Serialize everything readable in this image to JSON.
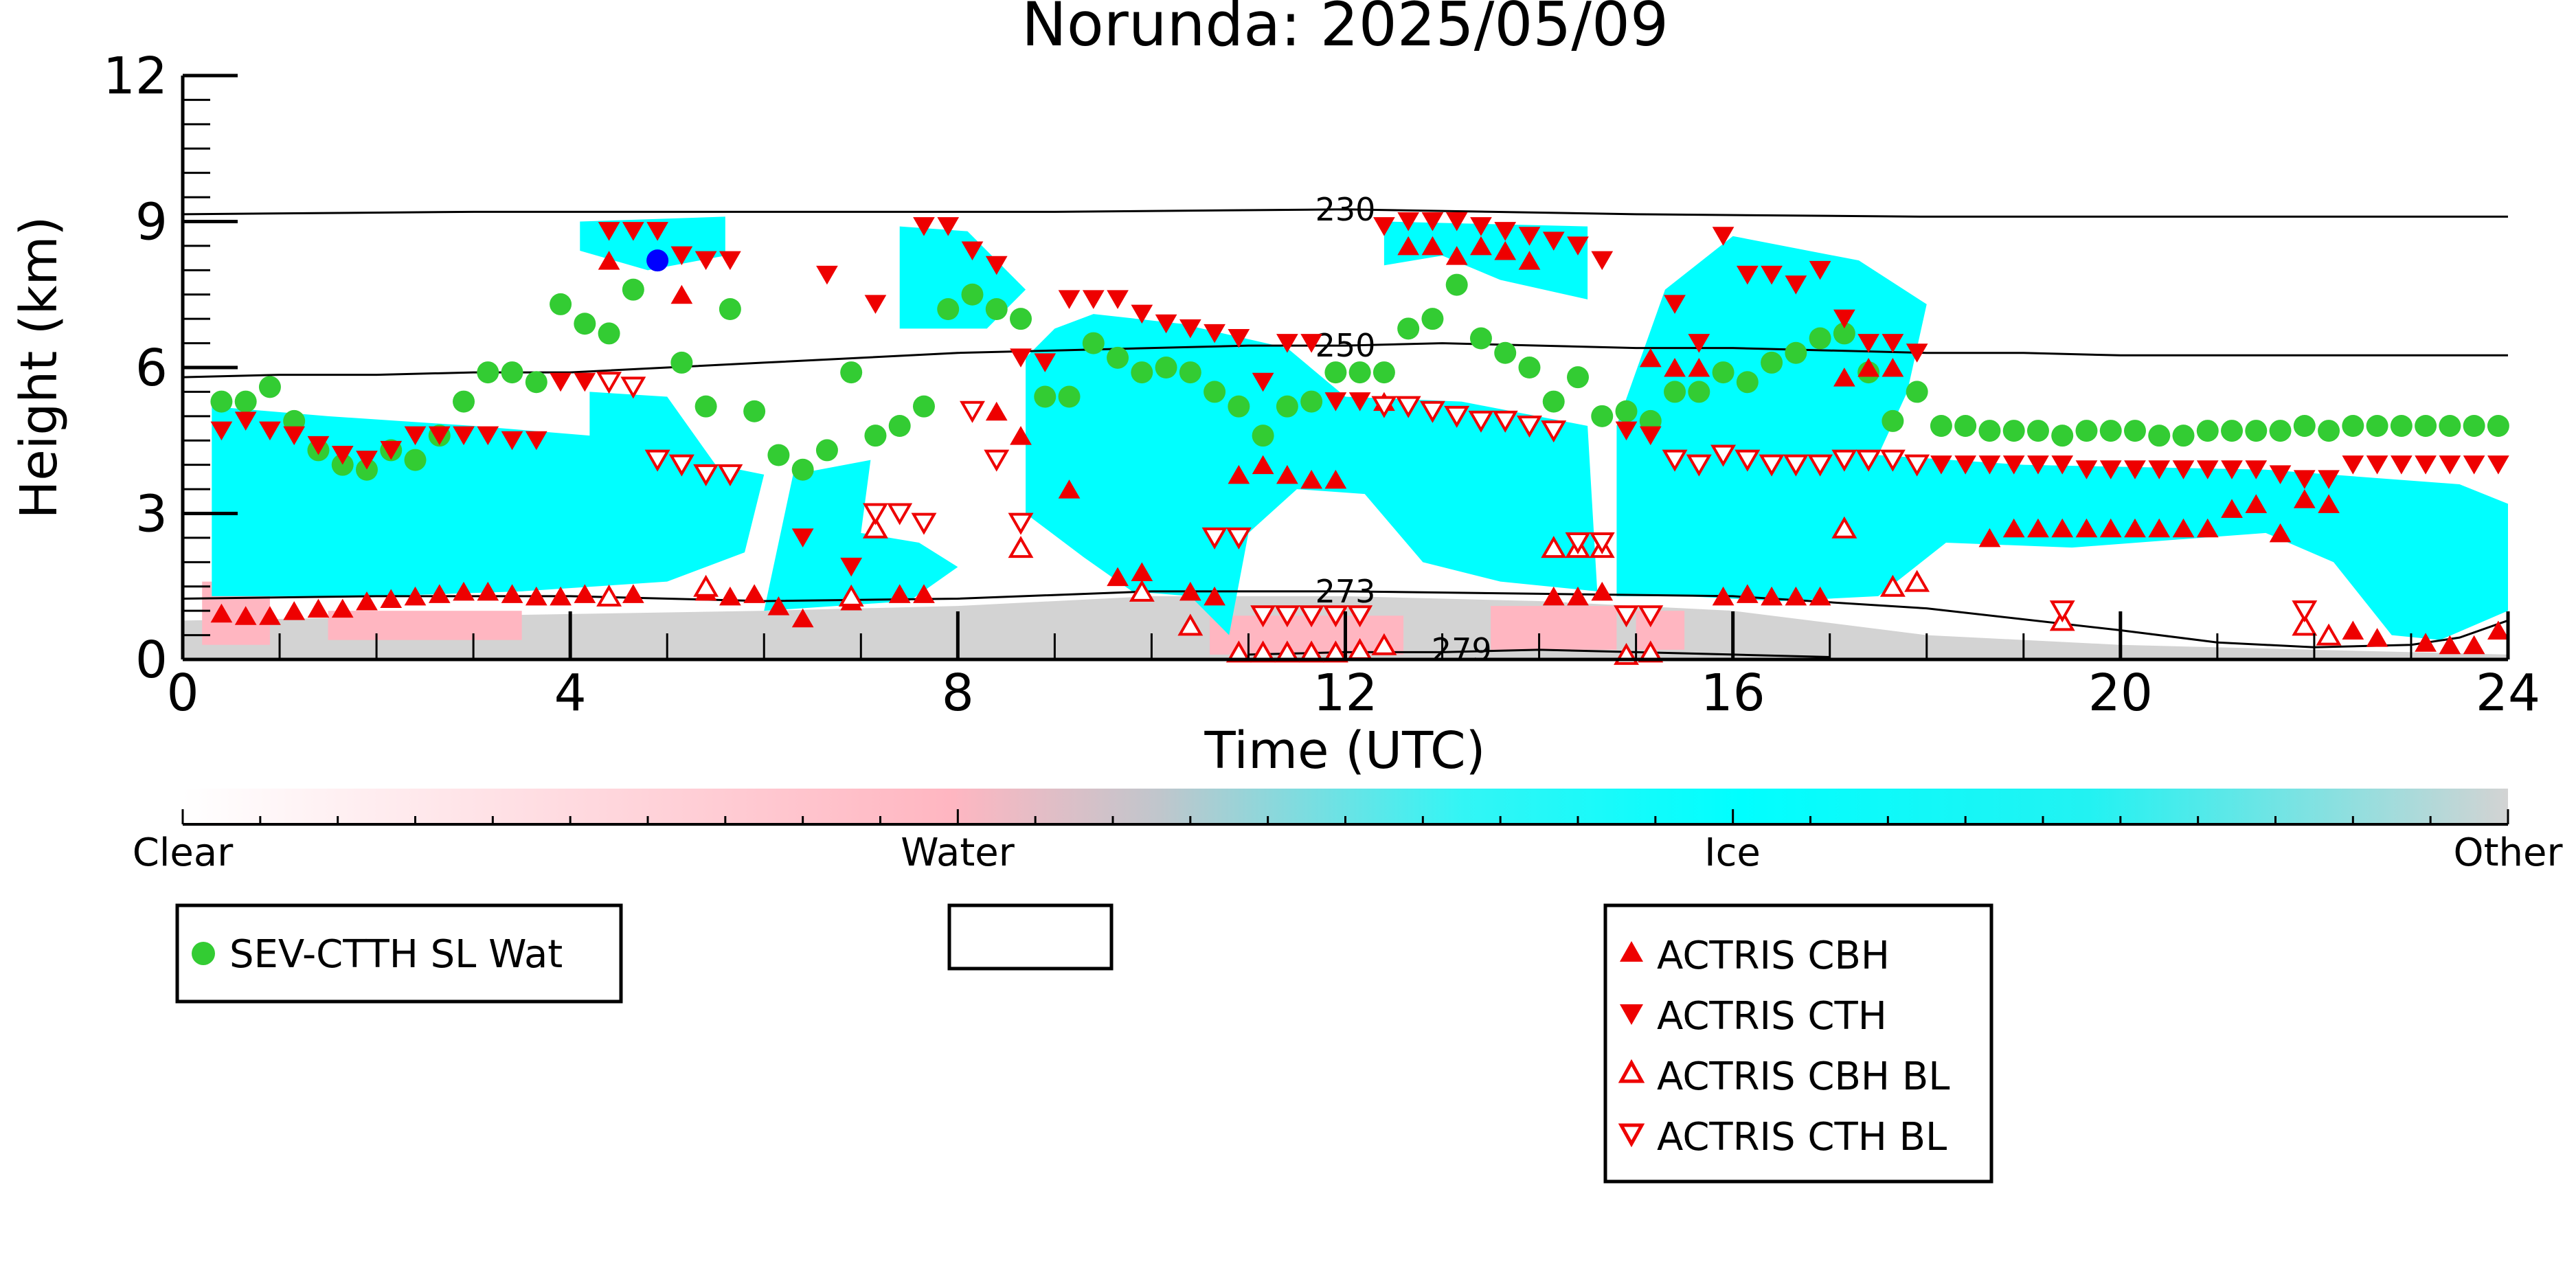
{
  "chart_data": {
    "type": "scatter",
    "title": "Norunda: 2025/05/09",
    "xlabel": "Time (UTC)",
    "ylabel": "Height (km)",
    "xlim": [
      0,
      24
    ],
    "ylim": [
      0,
      12
    ],
    "xticks": [
      0,
      4,
      8,
      12,
      16,
      20,
      24
    ],
    "yticks": [
      0,
      3,
      6,
      9,
      12
    ],
    "grid": false,
    "background": "cloud phase curtain (Clear / Water / Ice / Other) with temperature contours",
    "colorbar": {
      "labels": [
        "Clear",
        "Water",
        "Ice",
        "Other"
      ],
      "colors": [
        "#ffffff",
        "#ffb6c1",
        "#00ffff",
        "#d3d3d3"
      ]
    },
    "contours": [
      {
        "label": "230",
        "x": [
          0,
          3,
          6,
          9,
          12,
          15,
          18,
          21,
          24
        ],
        "y": [
          9.15,
          9.2,
          9.2,
          9.2,
          9.25,
          9.15,
          9.1,
          9.1,
          9.1
        ]
      },
      {
        "label": "250",
        "x": [
          0,
          1,
          2,
          3,
          4,
          5,
          6,
          7,
          8,
          9,
          10,
          11,
          12,
          13,
          14,
          15,
          16,
          17,
          18,
          19,
          20,
          22,
          24
        ],
        "y": [
          5.8,
          5.85,
          5.85,
          5.9,
          5.9,
          6.0,
          6.1,
          6.2,
          6.3,
          6.35,
          6.4,
          6.45,
          6.45,
          6.5,
          6.45,
          6.4,
          6.4,
          6.35,
          6.3,
          6.3,
          6.25,
          6.25,
          6.25
        ]
      },
      {
        "label": "273",
        "x": [
          0,
          2,
          4,
          6,
          8,
          10,
          12,
          14,
          16,
          18,
          20,
          21,
          22,
          23,
          23.5,
          24
        ],
        "y": [
          1.25,
          1.3,
          1.3,
          1.2,
          1.25,
          1.4,
          1.4,
          1.35,
          1.3,
          1.05,
          0.6,
          0.35,
          0.25,
          0.3,
          0.45,
          0.8
        ]
      },
      {
        "label": "279",
        "x": [
          11,
          12,
          13,
          14,
          15,
          16,
          17
        ],
        "y": [
          0.1,
          0.15,
          0.15,
          0.2,
          0.15,
          0.1,
          0.05
        ]
      }
    ],
    "series": [
      {
        "name": "SEV-CTTH SL Wat",
        "marker": "circle",
        "color": "#33cc33",
        "x": [
          0.4,
          0.65,
          0.9,
          1.15,
          1.4,
          1.65,
          1.9,
          2.15,
          2.4,
          2.65,
          2.9,
          3.15,
          3.4,
          3.65,
          3.9,
          4.15,
          4.4,
          4.65,
          5.15,
          5.4,
          5.65,
          5.9,
          6.15,
          6.4,
          6.65,
          6.9,
          7.15,
          7.4,
          7.65,
          7.9,
          8.15,
          8.4,
          8.65,
          8.9,
          9.15,
          9.4,
          9.65,
          9.9,
          10.15,
          10.4,
          10.65,
          10.9,
          11.15,
          11.4,
          11.65,
          11.9,
          12.15,
          12.4,
          12.65,
          12.9,
          13.15,
          13.4,
          13.65,
          13.9,
          14.15,
          14.4,
          14.65,
          14.9,
          15.15,
          15.4,
          15.65,
          15.9,
          16.15,
          16.4,
          16.65,
          16.9,
          17.15,
          17.4,
          17.65,
          17.9,
          18.15,
          18.4,
          18.65,
          18.9,
          19.15,
          19.4,
          19.65,
          19.9,
          20.15,
          20.4,
          20.65,
          20.9,
          21.15,
          21.4,
          21.65,
          21.9,
          22.15,
          22.4,
          22.65,
          22.9,
          23.15,
          23.4,
          23.65,
          23.9
        ],
        "y": [
          5.3,
          5.3,
          5.6,
          4.9,
          4.3,
          4.0,
          3.9,
          4.3,
          4.1,
          4.6,
          5.3,
          5.9,
          5.9,
          5.7,
          7.3,
          6.9,
          6.7,
          7.6,
          6.1,
          5.2,
          7.2,
          5.1,
          4.2,
          3.9,
          4.3,
          5.9,
          4.6,
          4.8,
          5.2,
          7.2,
          7.5,
          7.2,
          7.0,
          5.4,
          5.4,
          6.5,
          6.2,
          5.9,
          6.0,
          5.9,
          5.5,
          5.2,
          4.6,
          5.2,
          5.3,
          5.9,
          5.9,
          5.9,
          6.8,
          7.0,
          7.7,
          6.6,
          6.3,
          6.0,
          5.3,
          5.8,
          5.0,
          5.1,
          4.9,
          5.5,
          5.5,
          5.9,
          5.7,
          6.1,
          6.3,
          6.6,
          6.7,
          5.9,
          4.9,
          5.5,
          4.8,
          4.8,
          4.7,
          4.7,
          4.7,
          4.6,
          4.7,
          4.7,
          4.7,
          4.6,
          4.6,
          4.7,
          4.7,
          4.7,
          4.7,
          4.8,
          4.7,
          4.8,
          4.8,
          4.8,
          4.8,
          4.8,
          4.8,
          4.8
        ]
      },
      {
        "name": "",
        "marker": "circle",
        "color": "#0000ff",
        "x": [
          4.9
        ],
        "y": [
          8.2
        ]
      },
      {
        "name": "ACTRIS CBH",
        "marker": "triangle-up",
        "color": "#ee0000",
        "filled": true,
        "x": [
          0.4,
          0.65,
          0.9,
          1.15,
          1.4,
          1.65,
          1.9,
          2.15,
          2.4,
          2.65,
          2.9,
          3.15,
          3.4,
          3.65,
          3.9,
          4.15,
          4.4,
          4.65,
          5.15,
          5.4,
          5.65,
          5.9,
          6.15,
          6.4,
          6.9,
          7.4,
          7.65,
          8.4,
          8.65,
          9.15,
          9.65,
          9.9,
          10.4,
          10.65,
          10.9,
          11.15,
          11.4,
          11.65,
          11.9,
          12.4,
          12.65,
          12.9,
          13.15,
          13.4,
          13.65,
          13.9,
          14.15,
          14.4,
          14.65,
          15.15,
          15.4,
          15.65,
          15.9,
          16.15,
          16.4,
          16.65,
          16.9,
          17.15,
          17.4,
          17.65,
          18.65,
          18.9,
          19.15,
          19.4,
          19.65,
          19.9,
          20.15,
          20.4,
          20.65,
          20.9,
          21.15,
          21.4,
          21.65,
          21.9,
          22.15,
          22.4,
          22.65,
          23.15,
          23.4,
          23.65,
          23.9
        ],
        "y": [
          0.95,
          0.9,
          0.9,
          1.0,
          1.05,
          1.05,
          1.2,
          1.25,
          1.3,
          1.35,
          1.4,
          1.4,
          1.35,
          1.3,
          1.3,
          1.35,
          8.2,
          1.35,
          7.5,
          1.4,
          1.3,
          1.35,
          1.1,
          0.85,
          1.2,
          1.35,
          1.35,
          5.1,
          4.6,
          3.5,
          1.7,
          1.8,
          1.4,
          1.3,
          3.8,
          4.0,
          3.8,
          3.7,
          3.7,
          5.3,
          8.5,
          8.5,
          8.3,
          8.5,
          8.4,
          8.2,
          1.3,
          1.3,
          1.4,
          6.2,
          6.0,
          6.0,
          1.3,
          1.35,
          1.3,
          1.3,
          1.3,
          5.8,
          6.0,
          6.0,
          2.5,
          2.7,
          2.7,
          2.7,
          2.7,
          2.7,
          2.7,
          2.7,
          2.7,
          2.7,
          3.1,
          3.2,
          2.6,
          3.3,
          3.2,
          0.6,
          0.45,
          0.35,
          0.3,
          0.3,
          0.6
        ]
      },
      {
        "name": "ACTRIS CTH",
        "marker": "triangle-down",
        "color": "#ee0000",
        "filled": true,
        "x": [
          0.4,
          0.65,
          0.9,
          1.15,
          1.4,
          1.65,
          1.9,
          2.15,
          2.4,
          2.65,
          2.9,
          3.15,
          3.4,
          3.65,
          3.9,
          4.15,
          4.4,
          4.65,
          4.9,
          5.15,
          5.4,
          5.65,
          6.4,
          6.65,
          6.9,
          7.15,
          7.65,
          7.9,
          8.15,
          8.4,
          8.65,
          8.9,
          9.15,
          9.4,
          9.65,
          9.9,
          10.15,
          10.4,
          10.65,
          10.9,
          11.15,
          11.4,
          11.65,
          11.9,
          12.15,
          12.4,
          12.65,
          12.9,
          13.15,
          13.4,
          13.65,
          13.9,
          14.15,
          14.4,
          14.65,
          14.9,
          15.15,
          15.4,
          15.65,
          15.9,
          16.15,
          16.4,
          16.65,
          16.9,
          17.15,
          17.4,
          17.65,
          17.9,
          18.15,
          18.4,
          18.65,
          18.9,
          19.15,
          19.4,
          19.65,
          19.9,
          20.15,
          20.4,
          20.65,
          20.9,
          21.15,
          21.4,
          21.65,
          21.9,
          22.15,
          22.4,
          22.65,
          22.9,
          23.15,
          23.4,
          23.65,
          23.9
        ],
        "y": [
          4.7,
          4.9,
          4.7,
          4.6,
          4.4,
          4.2,
          4.1,
          4.3,
          4.6,
          4.6,
          4.6,
          4.6,
          4.5,
          4.5,
          5.7,
          5.7,
          8.8,
          8.8,
          8.8,
          8.3,
          8.2,
          8.2,
          2.5,
          7.9,
          1.9,
          7.3,
          8.9,
          8.9,
          8.4,
          8.1,
          6.2,
          6.1,
          7.4,
          7.4,
          7.4,
          7.1,
          6.9,
          6.8,
          6.7,
          6.6,
          5.7,
          6.5,
          6.5,
          5.3,
          5.3,
          8.9,
          9.0,
          9.0,
          9.0,
          8.9,
          8.8,
          8.7,
          8.6,
          8.5,
          8.2,
          4.7,
          4.6,
          7.3,
          6.5,
          8.7,
          7.9,
          7.9,
          7.7,
          8.0,
          7.0,
          6.5,
          6.5,
          6.3,
          4.0,
          4.0,
          4.0,
          4.0,
          4.0,
          4.0,
          3.9,
          3.9,
          3.9,
          3.9,
          3.9,
          3.9,
          3.9,
          3.9,
          3.8,
          3.7,
          3.7,
          4.0,
          4.0,
          4.0,
          4.0,
          4.0,
          4.0,
          4.0
        ]
      },
      {
        "name": "ACTRIS CBH BL",
        "marker": "triangle-up",
        "color": "#ee0000",
        "filled": false,
        "x": [
          4.4,
          5.4,
          6.9,
          7.15,
          8.65,
          9.9,
          10.4,
          10.9,
          11.15,
          11.4,
          11.65,
          11.9,
          12.15,
          12.4,
          14.15,
          14.4,
          14.65,
          14.9,
          15.15,
          17.15,
          17.65,
          17.9,
          19.4,
          21.9,
          22.15
        ],
        "y": [
          1.3,
          1.5,
          1.3,
          2.7,
          2.3,
          1.4,
          0.7,
          0.15,
          0.15,
          0.15,
          0.15,
          0.15,
          0.2,
          0.3,
          2.3,
          2.3,
          2.3,
          0.1,
          0.15,
          2.7,
          1.5,
          1.6,
          0.8,
          0.7,
          0.5
        ]
      },
      {
        "name": "ACTRIS CTH BL",
        "marker": "triangle-down",
        "color": "#ee0000",
        "filled": false,
        "x": [
          4.4,
          4.65,
          4.9,
          5.15,
          5.4,
          5.65,
          7.15,
          7.4,
          7.65,
          8.15,
          8.4,
          8.65,
          10.65,
          10.9,
          11.15,
          11.4,
          11.65,
          11.9,
          12.15,
          12.4,
          12.65,
          12.9,
          13.15,
          13.4,
          13.65,
          13.9,
          14.15,
          14.4,
          14.65,
          14.9,
          15.15,
          15.4,
          15.65,
          15.9,
          16.15,
          16.4,
          16.65,
          16.9,
          17.15,
          17.4,
          17.65,
          17.9,
          19.4,
          21.9
        ],
        "y": [
          5.7,
          5.6,
          4.1,
          4.0,
          3.8,
          3.8,
          3.0,
          3.0,
          2.8,
          5.1,
          4.1,
          2.8,
          2.5,
          2.5,
          0.9,
          0.9,
          0.9,
          0.9,
          0.9,
          5.2,
          5.2,
          5.1,
          5.0,
          4.9,
          4.9,
          4.8,
          4.7,
          2.4,
          2.4,
          0.9,
          0.9,
          4.1,
          4.0,
          4.2,
          4.1,
          4.0,
          4.0,
          4.0,
          4.1,
          4.1,
          4.1,
          4.0,
          1.0,
          1.0
        ]
      }
    ]
  }
}
